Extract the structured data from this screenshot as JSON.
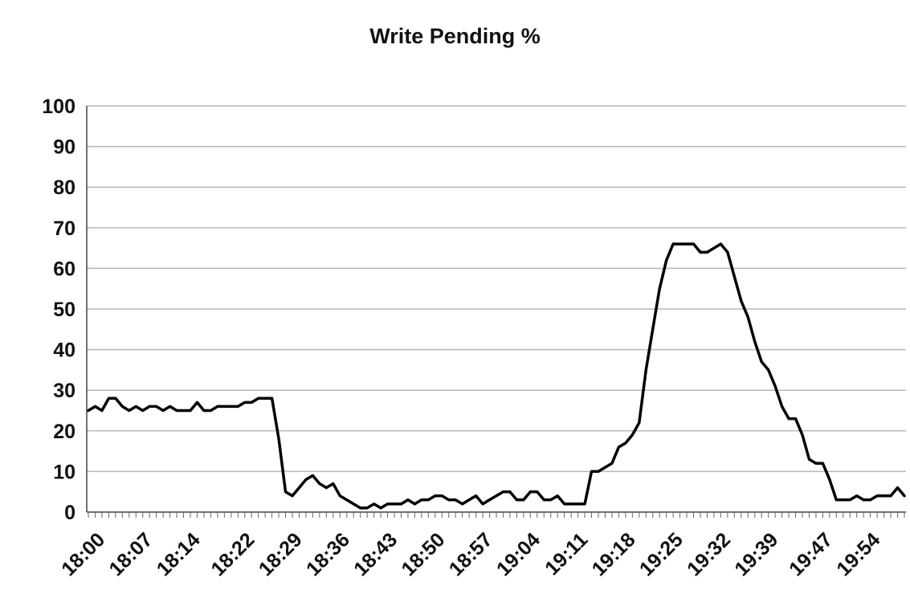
{
  "chart_data": {
    "type": "line",
    "title": "Write Pending %",
    "xlabel": "",
    "ylabel": "",
    "ylim": [
      0,
      100
    ],
    "yticks": [
      0,
      10,
      20,
      30,
      40,
      50,
      60,
      70,
      80,
      90,
      100
    ],
    "xticks": [
      "18:00",
      "18:07",
      "18:14",
      "18:22",
      "18:29",
      "18:36",
      "18:43",
      "18:50",
      "18:57",
      "19:04",
      "19:11",
      "19:18",
      "19:25",
      "19:32",
      "19:39",
      "19:47",
      "19:54"
    ],
    "grid": true,
    "legend": "none",
    "series": [
      {
        "color": "#000000",
        "x": [
          "18:00",
          "18:01",
          "18:02",
          "18:03",
          "18:04",
          "18:05",
          "18:06",
          "18:07",
          "18:08",
          "18:09",
          "18:10",
          "18:11",
          "18:12",
          "18:13",
          "18:14",
          "18:15",
          "18:16",
          "18:17",
          "18:18",
          "18:19",
          "18:20",
          "18:21",
          "18:22",
          "18:23",
          "18:24",
          "18:25",
          "18:26",
          "18:27",
          "18:28",
          "18:29",
          "18:30",
          "18:31",
          "18:32",
          "18:33",
          "18:34",
          "18:35",
          "18:36",
          "18:37",
          "18:38",
          "18:39",
          "18:40",
          "18:41",
          "18:42",
          "18:43",
          "18:44",
          "18:45",
          "18:46",
          "18:47",
          "18:48",
          "18:49",
          "18:50",
          "18:51",
          "18:52",
          "18:53",
          "18:54",
          "18:55",
          "18:56",
          "18:57",
          "18:58",
          "18:59",
          "19:00",
          "19:01",
          "19:02",
          "19:03",
          "19:04",
          "19:05",
          "19:06",
          "19:07",
          "19:08",
          "19:09",
          "19:10",
          "19:11",
          "19:12",
          "19:13",
          "19:14",
          "19:15",
          "19:16",
          "19:17",
          "19:18",
          "19:19",
          "19:20",
          "19:21",
          "19:22",
          "19:23",
          "19:24",
          "19:25",
          "19:26",
          "19:27",
          "19:28",
          "19:29",
          "19:30",
          "19:31",
          "19:32",
          "19:33",
          "19:34",
          "19:35",
          "19:36",
          "19:37",
          "19:38",
          "19:39",
          "19:40",
          "19:41",
          "19:42",
          "19:43",
          "19:44",
          "19:45",
          "19:46",
          "19:47",
          "19:48",
          "19:49",
          "19:50",
          "19:51",
          "19:52",
          "19:53",
          "19:54",
          "19:55",
          "19:56",
          "19:57",
          "19:58",
          "19:59",
          "20:00"
        ],
        "values": [
          25,
          26,
          25,
          28,
          28,
          26,
          25,
          26,
          25,
          26,
          26,
          25,
          26,
          25,
          25,
          25,
          27,
          25,
          25,
          26,
          26,
          26,
          26,
          27,
          27,
          28,
          28,
          28,
          18,
          5,
          4,
          6,
          8,
          9,
          7,
          6,
          7,
          4,
          3,
          2,
          1,
          1,
          2,
          1,
          2,
          2,
          2,
          3,
          2,
          3,
          3,
          4,
          4,
          3,
          3,
          2,
          3,
          4,
          2,
          3,
          4,
          5,
          5,
          3,
          3,
          5,
          5,
          3,
          3,
          4,
          2,
          2,
          2,
          2,
          10,
          10,
          11,
          12,
          16,
          17,
          19,
          22,
          35,
          45,
          55,
          62,
          66,
          66,
          66,
          66,
          64,
          64,
          65,
          66,
          64,
          58,
          52,
          48,
          42,
          37,
          35,
          31,
          26,
          23,
          23,
          19,
          13,
          12,
          12,
          8,
          3,
          3,
          3,
          4,
          3,
          3,
          4,
          4,
          4,
          6,
          4
        ]
      }
    ]
  }
}
